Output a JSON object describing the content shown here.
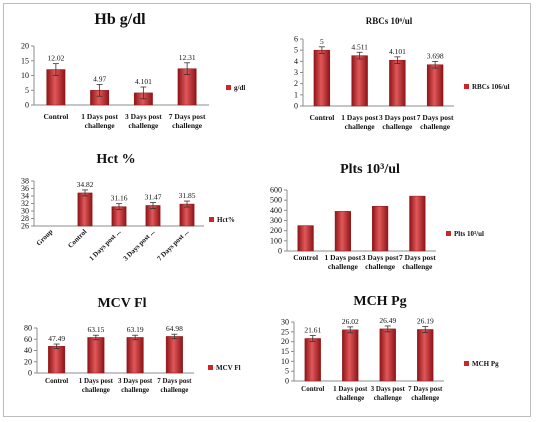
{
  "colors": {
    "bar": "#c8282c",
    "bar_dark": "#8e1417",
    "bar_light": "#e0585a",
    "axis": "#8c8c8c",
    "text": "#111111"
  },
  "chart_data": [
    {
      "type": "bar",
      "title": "Hb g/dl",
      "categories": [
        "Control",
        "1 Days post challenge",
        "3 Days post challenge",
        "7 Days post challenge"
      ],
      "series": [
        {
          "name": "g/dl",
          "values": [
            12.02,
            4.97,
            4.101,
            12.31
          ]
        }
      ],
      "data_labels": [
        "12.02",
        "4.97",
        "4.101",
        "12.31"
      ],
      "error": [
        2.0,
        2.0,
        2.0,
        2.0
      ],
      "ylim": [
        0,
        20
      ],
      "yticks": [
        "0",
        "5",
        "10",
        "15",
        "20"
      ],
      "grid": false,
      "legend": "right"
    },
    {
      "type": "bar",
      "title": "RBCs 10⁶/ul",
      "categories": [
        "Control",
        "1 Days post challenge",
        "3 Days post challenge",
        "7 Days post challenge"
      ],
      "series": [
        {
          "name": "RBCs 106/ul",
          "values": [
            5,
            4.511,
            4.101,
            3.698
          ]
        }
      ],
      "data_labels": [
        "5",
        "4.511",
        "4.101",
        "3.698"
      ],
      "error": [
        0.3,
        0.3,
        0.3,
        0.3
      ],
      "ylim": [
        0,
        6
      ],
      "yticks": [
        "0",
        "1",
        "2",
        "3",
        "4",
        "5",
        "6"
      ],
      "grid": false,
      "legend": "right"
    },
    {
      "type": "bar",
      "title": "Hct %",
      "categories": [
        "Group",
        "Control",
        "1 Days post ...",
        "3 Days post ...",
        "7 Days post ..."
      ],
      "series": [
        {
          "name": "Hct%",
          "values": [
            null,
            34.82,
            31.16,
            31.47,
            31.85
          ]
        }
      ],
      "data_labels": [
        "",
        "34.82",
        "31.16",
        "31.47",
        "31.85"
      ],
      "error": [
        0,
        0.8,
        0.8,
        0.8,
        0.8
      ],
      "ylim": [
        26,
        38
      ],
      "yticks": [
        "26",
        "28",
        "30",
        "32",
        "34",
        "36",
        "38"
      ],
      "grid": false,
      "legend": "right"
    },
    {
      "type": "bar",
      "title": "Plts 10³/ul",
      "categories": [
        "Control",
        "1 Days post challenge",
        "3 Days post challenge",
        "7 Days post challenge"
      ],
      "series": [
        {
          "name": "Plts 10³/ul",
          "values": [
            250,
            390,
            440,
            540
          ]
        }
      ],
      "data_labels": [],
      "error": [],
      "ylim": [
        0,
        600
      ],
      "yticks": [
        "0",
        "100",
        "200",
        "300",
        "400",
        "500",
        "600"
      ],
      "grid": false,
      "legend": "right"
    },
    {
      "type": "bar",
      "title": "MCV Fl",
      "categories": [
        "Control",
        "1 Days post challenge",
        "3 Days post challenge",
        "7 Days post challenge"
      ],
      "series": [
        {
          "name": "MCV Fl",
          "values": [
            47.49,
            63.15,
            63.19,
            64.98
          ]
        }
      ],
      "data_labels": [
        "47.49",
        "63.15",
        "63.19",
        "64.98"
      ],
      "error": [
        4,
        4,
        4,
        4
      ],
      "ylim": [
        0,
        80
      ],
      "yticks": [
        "0",
        "20",
        "40",
        "60",
        "80"
      ],
      "grid": false,
      "legend": "right"
    },
    {
      "type": "bar",
      "title": "MCH Pg",
      "categories": [
        "Control",
        "1 Days post challenge",
        "3 Days post challenge",
        "7 Days post challenge"
      ],
      "series": [
        {
          "name": "MCH Pg",
          "values": [
            21.61,
            26.02,
            26.49,
            26.19
          ]
        }
      ],
      "data_labels": [
        "21.61",
        "26.02",
        "26.49",
        "26.19"
      ],
      "error": [
        1.5,
        1.5,
        1.5,
        1.5
      ],
      "ylim": [
        0,
        30
      ],
      "yticks": [
        "0",
        "5",
        "10",
        "15",
        "20",
        "25",
        "30"
      ],
      "grid": false,
      "legend": "right"
    }
  ]
}
